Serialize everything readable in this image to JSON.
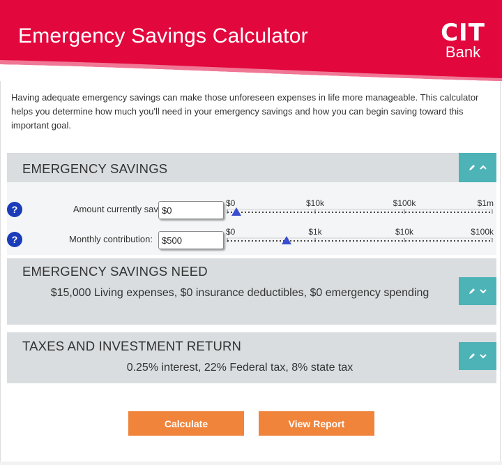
{
  "header": {
    "title": "Emergency Savings Calculator",
    "logo_top": "CIT",
    "logo_bottom": "Bank"
  },
  "intro": "Having adequate emergency savings can make those unforeseen expenses in life more manageable. This calculator helps you determine how much you'll need in your emergency savings and how you can begin saving toward this important goal.",
  "sections": {
    "savings": {
      "title": "EMERGENCY SAVINGS",
      "rows": [
        {
          "label": "Amount currently saved:",
          "value": "$0",
          "ticks": [
            "$0",
            "$10k",
            "$100k",
            "$1m"
          ],
          "slider_fraction": 0.0
        },
        {
          "label": "Monthly contribution:",
          "value": "$500",
          "ticks": [
            "$0",
            "$1k",
            "$10k",
            "$100k"
          ],
          "slider_fraction": 0.19
        }
      ]
    },
    "need": {
      "title": "EMERGENCY SAVINGS NEED",
      "summary": "$15,000 Living expenses, $0 insurance deductibles, $0 emergency spending"
    },
    "taxes": {
      "title": "TAXES AND INVESTMENT RETURN",
      "summary": "0.25% interest, 22% Federal tax, 8% state tax"
    }
  },
  "buttons": {
    "calculate": "Calculate",
    "view_report": "View Report"
  },
  "colors": {
    "brand_red": "#e2073d",
    "section_bg": "#d9dde0",
    "toggle_teal": "#4db3b7",
    "button_orange": "#f0843b",
    "help_blue": "#1a3cb8",
    "slider_marker": "#3a4fd0"
  },
  "icons": {
    "help": "question-mark",
    "toggle_open": "pencil-chevron-up",
    "toggle_closed": "pencil-chevron-down"
  }
}
